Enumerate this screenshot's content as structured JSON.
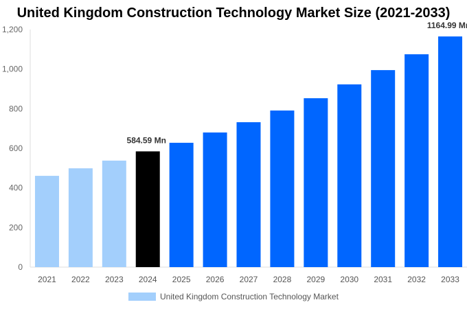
{
  "chart_data": {
    "type": "bar",
    "title": "United Kingdom Construction Technology Market Size (2021-2033)",
    "categories": [
      "2021",
      "2022",
      "2023",
      "2024",
      "2025",
      "2026",
      "2027",
      "2028",
      "2029",
      "2030",
      "2031",
      "2032",
      "2033"
    ],
    "series": [
      {
        "name": "United Kingdom Construction Technology Market",
        "values": [
          461,
          499,
          538,
          584.59,
          628,
          680,
          732,
          791,
          853,
          923,
          995,
          1075,
          1164.99
        ]
      }
    ],
    "data_labels": {
      "3": "584.59 Mn",
      "12": "1164.99 Mn"
    },
    "bar_colors": [
      "#a3cffc",
      "#a3cffc",
      "#a3cffc",
      "#000000",
      "#0066ff",
      "#0066ff",
      "#0066ff",
      "#0066ff",
      "#0066ff",
      "#0066ff",
      "#0066ff",
      "#0066ff",
      "#0066ff"
    ],
    "ylim": [
      0,
      1200
    ],
    "yticks": [
      "0",
      "200",
      "400",
      "600",
      "800",
      "1,000",
      "1,200"
    ],
    "grid": false,
    "legend": "bottom",
    "legend_color": "#a3cffc"
  }
}
